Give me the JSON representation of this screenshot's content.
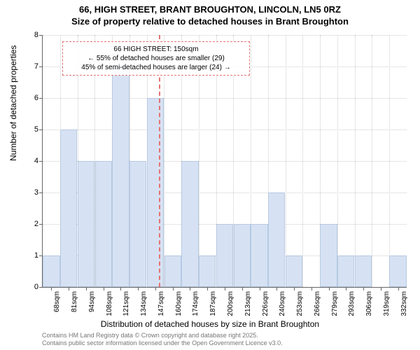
{
  "title": {
    "line1": "66, HIGH STREET, BRANT BROUGHTON, LINCOLN, LN5 0RZ",
    "line2": "Size of property relative to detached houses in Brant Broughton",
    "fontsize": 13
  },
  "chart": {
    "type": "histogram",
    "y_axis_label": "Number of detached properties",
    "x_axis_label": "Distribution of detached houses by size in Brant Broughton",
    "ylim": [
      0,
      8
    ],
    "ytick_step": 1,
    "x_categories": [
      "68sqm",
      "81sqm",
      "94sqm",
      "108sqm",
      "121sqm",
      "134sqm",
      "147sqm",
      "160sqm",
      "174sqm",
      "187sqm",
      "200sqm",
      "213sqm",
      "226sqm",
      "240sqm",
      "253sqm",
      "266sqm",
      "279sqm",
      "293sqm",
      "306sqm",
      "319sqm",
      "332sqm"
    ],
    "values": [
      1,
      5,
      4,
      4,
      7,
      4,
      6,
      1,
      4,
      1,
      2,
      2,
      2,
      3,
      1,
      0,
      2,
      1,
      1,
      0,
      1
    ],
    "bar_color": "#d6e2f3",
    "bar_border_color": "#b7c9e2",
    "grid_color": "#cccccc",
    "background_color": "#ffffff",
    "tick_fontsize": 11,
    "label_fontsize": 12
  },
  "reference": {
    "value_sqm": 150,
    "line_color": "#e57373",
    "line_dash": true,
    "box": {
      "line1": "66 HIGH STREET: 150sqm",
      "line2": "← 55% of detached houses are smaller (29)",
      "line3": "45% of semi-detached houses are larger (24) →",
      "border_color": "#e57373",
      "fontsize": 10
    }
  },
  "footer": {
    "line1": "Contains HM Land Registry data © Crown copyright and database right 2025.",
    "line2": "Contains public sector information licensed under the Open Government Licence v3.0.",
    "fontsize": 9,
    "color": "#777777"
  }
}
